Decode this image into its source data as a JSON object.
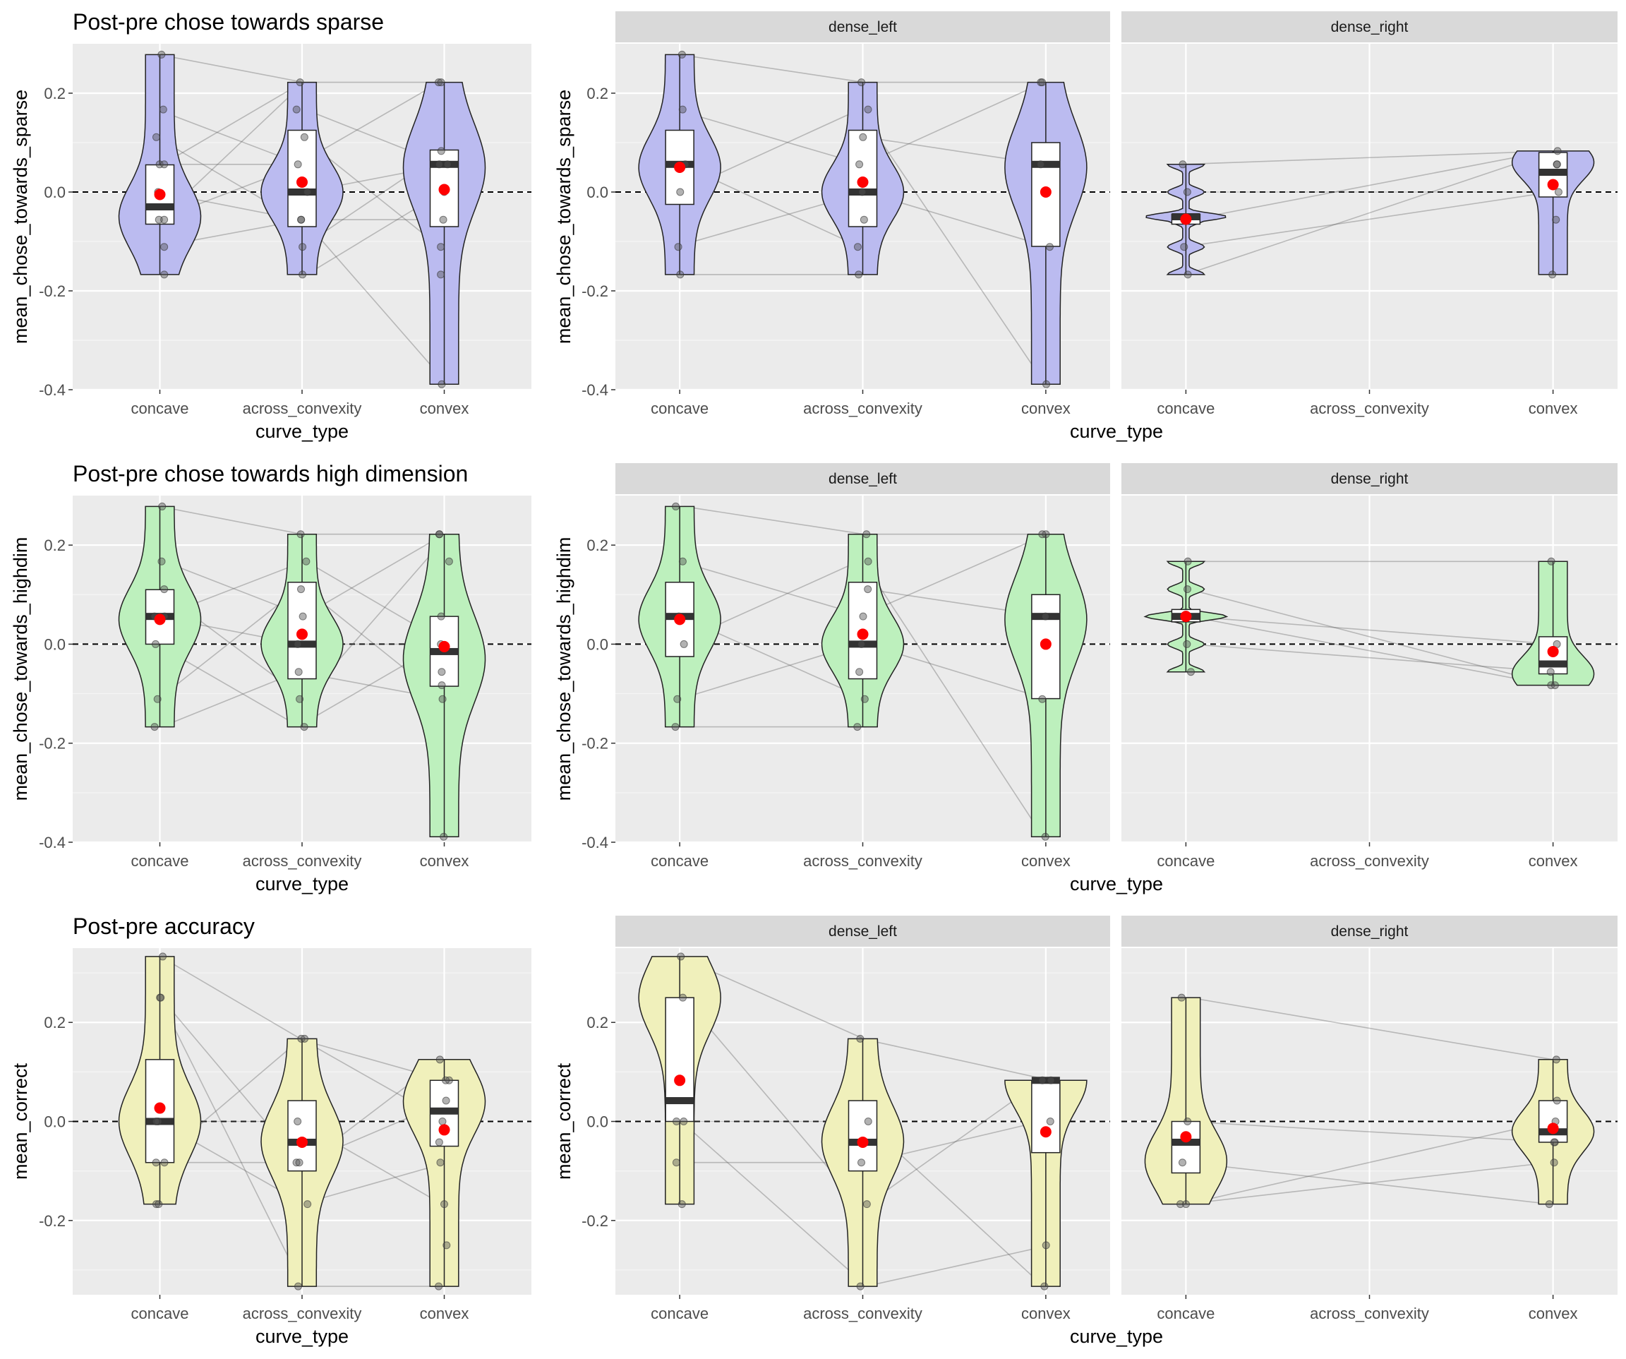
{
  "chart_data": [
    {
      "type": "violin",
      "row": "sparse",
      "title": "Post-pre chose towards sparse",
      "xlabel": "curve_type",
      "ylabel": "mean_chose_towards_sparse",
      "categories": [
        "concave",
        "across_convexity",
        "convex"
      ],
      "ylim": [
        -0.4,
        0.3
      ],
      "yticks": [
        0.2,
        0.0,
        -0.2,
        -0.4
      ],
      "yticklabels": [
        "0.2",
        "0.0",
        "-0.2",
        "-0.4"
      ],
      "fill": "#bbbbf0",
      "groups": [
        {
          "range": [
            -0.167,
            0.278
          ],
          "q1": -0.065,
          "median": -0.03,
          "q3": 0.055,
          "mean": -0.005,
          "mode": -0.05,
          "points": [
            0.278,
            0.167,
            0.111,
            0.056,
            0.056,
            0.0,
            -0.056,
            -0.056,
            -0.111,
            -0.167
          ]
        },
        {
          "range": [
            -0.167,
            0.222
          ],
          "q1": -0.07,
          "median": 0.0,
          "q3": 0.125,
          "mean": 0.02,
          "mode": 0.0,
          "points": [
            0.222,
            0.167,
            0.111,
            0.056,
            0.0,
            -0.056,
            -0.056,
            -0.111,
            -0.167
          ]
        },
        {
          "range": [
            -0.389,
            0.222
          ],
          "q1": -0.07,
          "median": 0.056,
          "q3": 0.085,
          "mean": 0.005,
          "mode": 0.05,
          "points": [
            0.222,
            0.222,
            0.083,
            0.056,
            0.056,
            0.0,
            -0.056,
            -0.111,
            -0.167,
            -0.389
          ]
        }
      ]
    },
    {
      "type": "violin",
      "row": "sparse",
      "facets": [
        "dense_left",
        "dense_right"
      ],
      "xlabel": "curve_type",
      "ylabel": "mean_chose_towards_sparse",
      "categories": [
        "concave",
        "across_convexity",
        "convex"
      ],
      "ylim": [
        -0.4,
        0.3
      ],
      "yticks": [
        0.2,
        0.0,
        -0.2,
        -0.4
      ],
      "yticklabels": [
        "0.2",
        "0.0",
        "-0.2",
        "-0.4"
      ],
      "fill": "#bbbbf0",
      "groups": [
        {
          "facet": 0,
          "cat": 0,
          "range": [
            -0.167,
            0.278
          ],
          "q1": -0.025,
          "median": 0.056,
          "q3": 0.125,
          "mean": 0.05,
          "mode": 0.05,
          "points": [
            0.278,
            0.167,
            0.056,
            0.0,
            -0.111,
            -0.167
          ]
        },
        {
          "facet": 0,
          "cat": 1,
          "range": [
            -0.167,
            0.222
          ],
          "q1": -0.07,
          "median": 0.0,
          "q3": 0.125,
          "mean": 0.02,
          "mode": 0.0,
          "points": [
            0.222,
            0.167,
            0.111,
            0.056,
            0.0,
            -0.056,
            -0.111,
            -0.167
          ]
        },
        {
          "facet": 0,
          "cat": 2,
          "range": [
            -0.389,
            0.222
          ],
          "q1": -0.11,
          "median": 0.056,
          "q3": 0.1,
          "mean": 0.0,
          "mode": 0.05,
          "points": [
            0.222,
            0.222,
            0.056,
            -0.111,
            -0.389
          ]
        },
        {
          "facet": 1,
          "cat": 0,
          "range": [
            -0.167,
            0.056
          ],
          "q1": -0.065,
          "median": -0.05,
          "q3": -0.045,
          "mean": -0.055,
          "mode": -0.05,
          "spiky": true,
          "points": [
            0.056,
            0.0,
            -0.056,
            -0.111,
            -0.167
          ]
        },
        {
          "facet": 1,
          "cat": 2,
          "range": [
            -0.167,
            0.083
          ],
          "q1": -0.01,
          "median": 0.04,
          "q3": 0.08,
          "mean": 0.015,
          "mode": 0.06,
          "points": [
            0.083,
            0.056,
            0.056,
            0.0,
            -0.056,
            -0.167
          ]
        }
      ]
    },
    {
      "type": "violin",
      "row": "highdim",
      "title": "Post-pre chose towards high dimension",
      "xlabel": "curve_type",
      "ylabel": "mean_chose_towards_highdim",
      "categories": [
        "concave",
        "across_convexity",
        "convex"
      ],
      "ylim": [
        -0.4,
        0.3
      ],
      "yticks": [
        0.2,
        0.0,
        -0.2,
        -0.4
      ],
      "yticklabels": [
        "0.2",
        "0.0",
        "-0.2",
        "-0.4"
      ],
      "fill": "#bdf0bd",
      "groups": [
        {
          "range": [
            -0.167,
            0.278
          ],
          "q1": 0.0,
          "median": 0.056,
          "q3": 0.11,
          "mean": 0.05,
          "mode": 0.05,
          "points": [
            0.278,
            0.167,
            0.111,
            0.056,
            0.056,
            0.0,
            -0.111,
            -0.167
          ]
        },
        {
          "range": [
            -0.167,
            0.222
          ],
          "q1": -0.07,
          "median": 0.0,
          "q3": 0.125,
          "mean": 0.02,
          "mode": 0.0,
          "points": [
            0.222,
            0.167,
            0.111,
            0.056,
            0.0,
            -0.056,
            -0.111,
            -0.167
          ]
        },
        {
          "range": [
            -0.389,
            0.222
          ],
          "q1": -0.085,
          "median": -0.015,
          "q3": 0.056,
          "mean": -0.005,
          "mode": -0.03,
          "points": [
            0.222,
            0.222,
            0.167,
            0.056,
            0.0,
            -0.056,
            -0.083,
            -0.111,
            -0.389
          ]
        }
      ]
    },
    {
      "type": "violin",
      "row": "highdim",
      "facets": [
        "dense_left",
        "dense_right"
      ],
      "xlabel": "curve_type",
      "ylabel": "mean_chose_towards_highdim",
      "categories": [
        "concave",
        "across_convexity",
        "convex"
      ],
      "ylim": [
        -0.4,
        0.3
      ],
      "yticks": [
        0.2,
        0.0,
        -0.2,
        -0.4
      ],
      "yticklabels": [
        "0.2",
        "0.0",
        "-0.2",
        "-0.4"
      ],
      "fill": "#bdf0bd",
      "groups": [
        {
          "facet": 0,
          "cat": 0,
          "range": [
            -0.167,
            0.278
          ],
          "q1": -0.025,
          "median": 0.056,
          "q3": 0.125,
          "mean": 0.05,
          "mode": 0.05,
          "points": [
            0.278,
            0.167,
            0.056,
            0.0,
            -0.111,
            -0.167
          ]
        },
        {
          "facet": 0,
          "cat": 1,
          "range": [
            -0.167,
            0.222
          ],
          "q1": -0.07,
          "median": 0.0,
          "q3": 0.125,
          "mean": 0.02,
          "mode": 0.0,
          "points": [
            0.222,
            0.167,
            0.111,
            0.056,
            0.0,
            -0.056,
            -0.111,
            -0.167
          ]
        },
        {
          "facet": 0,
          "cat": 2,
          "range": [
            -0.389,
            0.222
          ],
          "q1": -0.11,
          "median": 0.056,
          "q3": 0.1,
          "mean": 0.0,
          "mode": 0.05,
          "points": [
            0.222,
            0.222,
            0.056,
            -0.111,
            -0.389
          ]
        },
        {
          "facet": 1,
          "cat": 0,
          "range": [
            -0.056,
            0.167
          ],
          "q1": 0.045,
          "median": 0.056,
          "q3": 0.07,
          "mean": 0.056,
          "mode": 0.056,
          "spiky": true,
          "points": [
            0.167,
            0.111,
            0.056,
            0.056,
            0.0,
            -0.056
          ]
        },
        {
          "facet": 1,
          "cat": 2,
          "range": [
            -0.083,
            0.167
          ],
          "q1": -0.06,
          "median": -0.04,
          "q3": 0.015,
          "mean": -0.015,
          "mode": -0.06,
          "points": [
            0.167,
            0.0,
            -0.056,
            -0.083,
            -0.083
          ]
        }
      ]
    },
    {
      "type": "violin",
      "row": "accuracy",
      "title": "Post-pre accuracy",
      "xlabel": "curve_type",
      "ylabel": "mean_correct",
      "categories": [
        "concave",
        "across_convexity",
        "convex"
      ],
      "ylim": [
        -0.35,
        0.35
      ],
      "yticks": [
        0.2,
        0.0,
        -0.2
      ],
      "yticklabels": [
        "0.2",
        "0.0",
        "-0.2"
      ],
      "fill": "#f0f0bb",
      "groups": [
        {
          "range": [
            -0.167,
            0.333
          ],
          "q1": -0.083,
          "median": 0.0,
          "q3": 0.125,
          "mean": 0.027,
          "mode": 0.0,
          "points": [
            0.333,
            0.25,
            0.25,
            0.0,
            0.0,
            -0.083,
            -0.083,
            -0.167,
            -0.167
          ]
        },
        {
          "range": [
            -0.333,
            0.167
          ],
          "q1": -0.1,
          "median": -0.042,
          "q3": 0.042,
          "mean": -0.042,
          "mode": -0.04,
          "points": [
            0.167,
            0.167,
            0.0,
            -0.083,
            -0.083,
            -0.167,
            -0.333
          ]
        },
        {
          "range": [
            -0.333,
            0.125
          ],
          "q1": -0.05,
          "median": 0.021,
          "q3": 0.083,
          "mean": -0.017,
          "mode": 0.04,
          "points": [
            0.125,
            0.083,
            0.083,
            0.042,
            0.0,
            -0.042,
            -0.083,
            -0.167,
            -0.25,
            -0.333
          ]
        }
      ]
    },
    {
      "type": "violin",
      "row": "accuracy",
      "facets": [
        "dense_left",
        "dense_right"
      ],
      "xlabel": "curve_type",
      "ylabel": "mean_correct",
      "categories": [
        "concave",
        "across_convexity",
        "convex"
      ],
      "ylim": [
        -0.35,
        0.35
      ],
      "yticks": [
        0.2,
        0.0,
        -0.2
      ],
      "yticklabels": [
        "0.2",
        "0.0",
        "-0.2"
      ],
      "fill": "#f0f0bb",
      "groups": [
        {
          "facet": 0,
          "cat": 0,
          "range": [
            -0.167,
            0.333
          ],
          "q1": 0.0,
          "median": 0.042,
          "q3": 0.25,
          "mean": 0.083,
          "mode": 0.25,
          "points": [
            0.333,
            0.25,
            0.0,
            0.0,
            -0.083,
            -0.167
          ]
        },
        {
          "facet": 0,
          "cat": 1,
          "range": [
            -0.333,
            0.167
          ],
          "q1": -0.1,
          "median": -0.042,
          "q3": 0.042,
          "mean": -0.042,
          "mode": -0.04,
          "points": [
            0.167,
            0.0,
            -0.083,
            -0.167,
            -0.333
          ]
        },
        {
          "facet": 0,
          "cat": 2,
          "range": [
            -0.333,
            0.083
          ],
          "q1": -0.063,
          "median": 0.083,
          "q3": 0.083,
          "mean": -0.021,
          "mode": 0.083,
          "points": [
            0.083,
            0.083,
            0.0,
            -0.25,
            -0.333
          ]
        },
        {
          "facet": 1,
          "cat": 0,
          "range": [
            -0.167,
            0.25
          ],
          "q1": -0.104,
          "median": -0.042,
          "q3": 0.0,
          "mean": -0.031,
          "mode": -0.08,
          "points": [
            0.25,
            0.0,
            -0.083,
            -0.167,
            -0.167
          ]
        },
        {
          "facet": 1,
          "cat": 2,
          "range": [
            -0.167,
            0.125
          ],
          "q1": -0.042,
          "median": -0.021,
          "q3": 0.042,
          "mean": -0.014,
          "mode": -0.02,
          "points": [
            0.125,
            0.042,
            0.0,
            -0.042,
            -0.042,
            -0.083,
            -0.167
          ]
        }
      ]
    }
  ]
}
